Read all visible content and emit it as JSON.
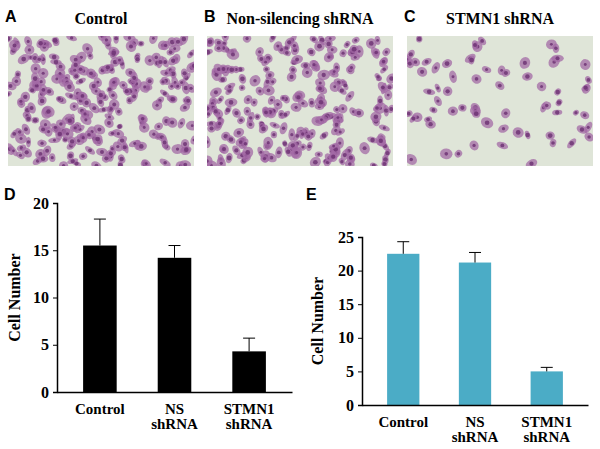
{
  "panels": [
    {
      "label": "A",
      "title": "Control"
    },
    {
      "label": "B",
      "title": "Non-silencing shRNA"
    },
    {
      "label": "C",
      "title": "STMN1 shRNA"
    }
  ],
  "chart_data": [
    {
      "type": "bar",
      "panel_label": "D",
      "y_label": "Cell Number",
      "categories": [
        "Control",
        "NS shRNA",
        "STMN1 shRNA"
      ],
      "values": [
        15.5,
        14.2,
        4.3
      ],
      "errors": [
        2.8,
        1.3,
        1.4
      ],
      "color": "#000000",
      "ylim": [
        0,
        20
      ],
      "yticks": [
        0,
        5,
        10,
        15,
        20
      ]
    },
    {
      "type": "bar",
      "panel_label": "E",
      "y_label": "Cell Number",
      "categories": [
        "Control",
        "NS shRNA",
        "STMN1 shRNA"
      ],
      "values": [
        22.5,
        21.2,
        5.0
      ],
      "errors": [
        1.8,
        1.5,
        0.6
      ],
      "color": "#4bacc6",
      "ylim": [
        0,
        25
      ],
      "yticks": [
        0,
        5,
        10,
        15,
        20,
        25
      ]
    }
  ]
}
